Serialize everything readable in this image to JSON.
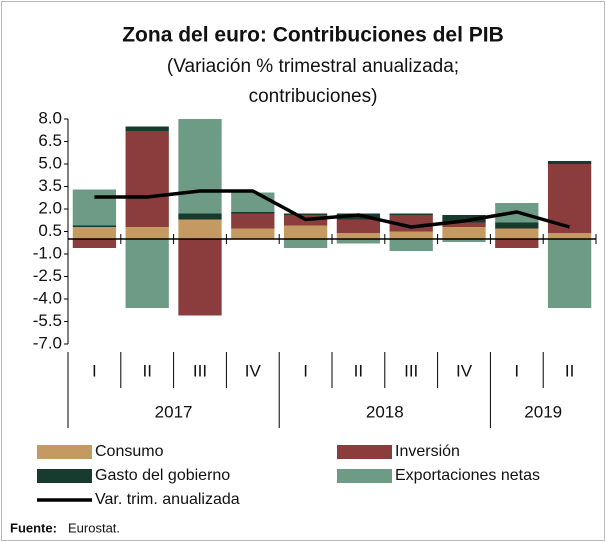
{
  "chart_data": {
    "type": "bar",
    "stacked": true,
    "title": "Zona del euro:  Contribuciones del PIB",
    "subtitle": [
      "(Variación % trimestral anualizada;",
      "contribuciones)"
    ],
    "categories": [
      "I",
      "II",
      "III",
      "IV",
      "I",
      "II",
      "III",
      "IV",
      "I",
      "II"
    ],
    "groups": [
      {
        "label": "2017",
        "size": 4
      },
      {
        "label": "2018",
        "size": 4
      },
      {
        "label": "2019",
        "size": 2
      }
    ],
    "series": [
      {
        "name": "Consumo",
        "color": "#c49a62",
        "values": [
          0.8,
          0.8,
          1.3,
          0.7,
          0.9,
          0.4,
          0.5,
          0.8,
          0.7,
          0.4
        ]
      },
      {
        "name": "Inversión",
        "color": "#8b3d3d",
        "values": [
          -0.6,
          6.4,
          -5.1,
          1.0,
          0.7,
          0.9,
          1.1,
          0.3,
          -0.6,
          4.6
        ]
      },
      {
        "name": "Gasto del gobierno",
        "color": "#173b2e",
        "values": [
          0.1,
          0.3,
          0.4,
          0.1,
          0.1,
          0.4,
          0.1,
          0.5,
          0.4,
          0.2
        ]
      },
      {
        "name": "Exportaciones netas",
        "color": "#6e9b86",
        "values": [
          2.4,
          -4.6,
          6.3,
          1.3,
          -0.6,
          -0.3,
          -0.8,
          -0.2,
          1.3,
          -4.6
        ]
      },
      {
        "name": "Var. trim. anualizada",
        "type": "line",
        "color": "#000000",
        "values": [
          2.8,
          2.8,
          3.2,
          3.2,
          1.3,
          1.6,
          0.8,
          1.2,
          1.8,
          0.8
        ]
      }
    ],
    "ylim": [
      -7,
      8
    ],
    "yticks": [
      {
        "value": 8,
        "label": "8.0"
      },
      6.5,
      {
        "value": 5,
        "label": "5.0"
      },
      3.5,
      {
        "value": 2,
        "label": "2.0"
      },
      0.5,
      {
        "value": -1,
        "label": "-1.0"
      },
      -2.5,
      {
        "value": -4,
        "label": "-4.0"
      },
      -5.5,
      {
        "value": -7,
        "label": "-7.0"
      }
    ],
    "source_label": "Fuente:",
    "source": "Eurostat."
  }
}
